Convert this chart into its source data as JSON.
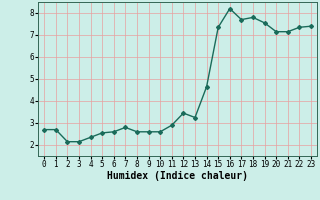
{
  "x": [
    0,
    1,
    2,
    3,
    4,
    5,
    6,
    7,
    8,
    9,
    10,
    11,
    12,
    13,
    14,
    15,
    16,
    17,
    18,
    19,
    20,
    21,
    22,
    23
  ],
  "y": [
    2.7,
    2.7,
    2.15,
    2.15,
    2.35,
    2.55,
    2.6,
    2.8,
    2.6,
    2.6,
    2.6,
    2.9,
    3.45,
    3.25,
    4.65,
    7.35,
    8.2,
    7.7,
    7.8,
    7.55,
    7.15,
    7.15,
    7.35,
    7.4
  ],
  "line_color": "#1a6b5a",
  "marker": "D",
  "marker_size": 2.0,
  "bg_color": "#cceee8",
  "grid_color": "#e8a0a0",
  "xlabel": "Humidex (Indice chaleur)",
  "xlabel_fontsize": 7,
  "ylim": [
    1.5,
    8.5
  ],
  "xlim": [
    -0.5,
    23.5
  ],
  "yticks": [
    2,
    3,
    4,
    5,
    6,
    7,
    8
  ],
  "xticks": [
    0,
    1,
    2,
    3,
    4,
    5,
    6,
    7,
    8,
    9,
    10,
    11,
    12,
    13,
    14,
    15,
    16,
    17,
    18,
    19,
    20,
    21,
    22,
    23
  ],
  "tick_fontsize": 5.5,
  "linewidth": 1.0
}
